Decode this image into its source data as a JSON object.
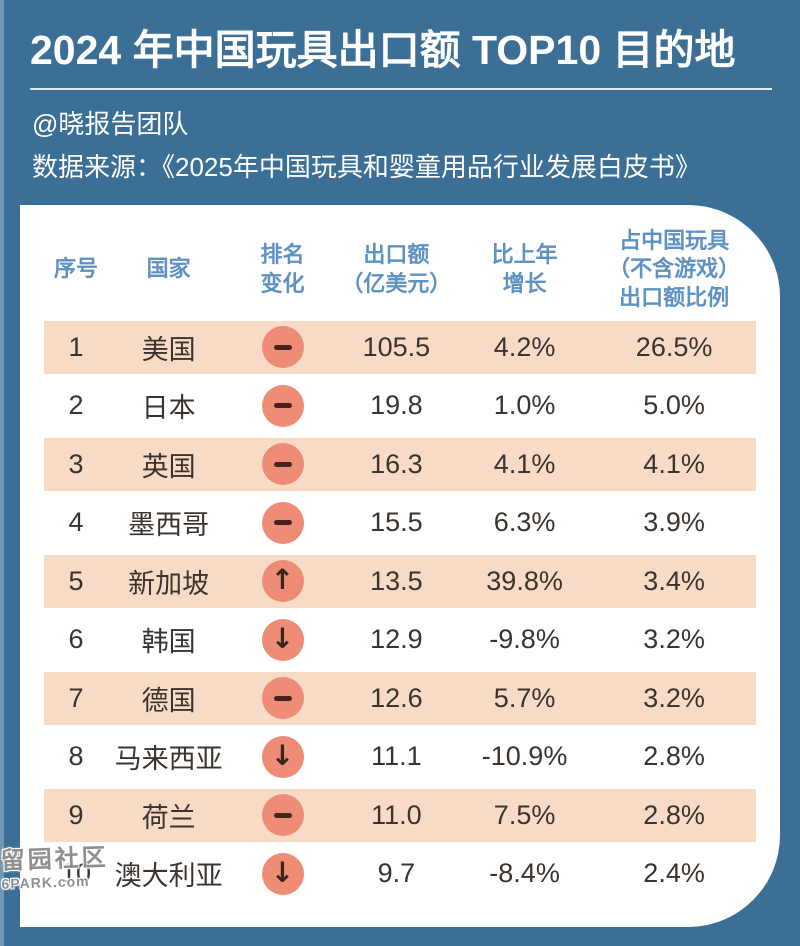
{
  "page": {
    "title": "2024 年中国玩具出口额 TOP10 目的地",
    "byline": "@晓报告团队",
    "source": "数据来源：《2025年中国玩具和婴童用品行业发展白皮书》"
  },
  "table": {
    "headers": [
      "序号",
      "国家",
      "排名\n变化",
      "出口额\n（亿美元）",
      "比上年\n增长",
      "占中国玩具\n（不含游戏）\n出口额比例"
    ],
    "change_glyphs": {
      "same": "",
      "up": "↑",
      "down": "↓"
    },
    "rows": [
      {
        "no": "1",
        "country": "美国",
        "change": "same",
        "export": "105.5",
        "growth": "4.2%",
        "share": "26.5%"
      },
      {
        "no": "2",
        "country": "日本",
        "change": "same",
        "export": "19.8",
        "growth": "1.0%",
        "share": "5.0%"
      },
      {
        "no": "3",
        "country": "英国",
        "change": "same",
        "export": "16.3",
        "growth": "4.1%",
        "share": "4.1%"
      },
      {
        "no": "4",
        "country": "墨西哥",
        "change": "same",
        "export": "15.5",
        "growth": "6.3%",
        "share": "3.9%"
      },
      {
        "no": "5",
        "country": "新加坡",
        "change": "up",
        "export": "13.5",
        "growth": "39.8%",
        "share": "3.4%"
      },
      {
        "no": "6",
        "country": "韩国",
        "change": "down",
        "export": "12.9",
        "growth": "-9.8%",
        "share": "3.2%"
      },
      {
        "no": "7",
        "country": "德国",
        "change": "same",
        "export": "12.6",
        "growth": "5.7%",
        "share": "3.2%"
      },
      {
        "no": "8",
        "country": "马来西亚",
        "change": "down",
        "export": "11.1",
        "growth": "-10.9%",
        "share": "2.8%"
      },
      {
        "no": "9",
        "country": "荷兰",
        "change": "same",
        "export": "11.0",
        "growth": "7.5%",
        "share": "2.8%"
      },
      {
        "no": "10",
        "country": "澳大利亚",
        "change": "down",
        "export": "9.7",
        "growth": "-8.4%",
        "share": "2.4%"
      }
    ]
  },
  "chart_data": {
    "type": "table",
    "title": "2024 年中国玩具出口额 TOP10 目的地",
    "columns": [
      "序号",
      "国家",
      "排名变化",
      "出口额（亿美元）",
      "比上年增长",
      "占中国玩具（不含游戏）出口额比例"
    ],
    "rows": [
      [
        "1",
        "美国",
        "−",
        "105.5",
        "4.2%",
        "26.5%"
      ],
      [
        "2",
        "日本",
        "−",
        "19.8",
        "1.0%",
        "5.0%"
      ],
      [
        "3",
        "英国",
        "−",
        "16.3",
        "4.1%",
        "4.1%"
      ],
      [
        "4",
        "墨西哥",
        "−",
        "15.5",
        "6.3%",
        "3.9%"
      ],
      [
        "5",
        "新加坡",
        "↑",
        "13.5",
        "39.8%",
        "3.4%"
      ],
      [
        "6",
        "韩国",
        "↓",
        "12.9",
        "-9.8%",
        "3.2%"
      ],
      [
        "7",
        "德国",
        "−",
        "12.6",
        "5.7%",
        "3.2%"
      ],
      [
        "8",
        "马来西亚",
        "↓",
        "11.1",
        "-10.9%",
        "2.8%"
      ],
      [
        "9",
        "荷兰",
        "−",
        "11.0",
        "7.5%",
        "2.8%"
      ],
      [
        "10",
        "澳大利亚",
        "↓",
        "9.7",
        "-8.4%",
        "2.4%"
      ]
    ]
  },
  "watermark": {
    "line1": "留园社区",
    "line2": "6PARK.com"
  },
  "colors": {
    "bg": "#3C6F95",
    "card": "#FFFFFF",
    "stripe": "#F8DBC7",
    "badge": "#EE8C76",
    "glyph-dark": "#46241C",
    "header-blue": "#5E92C4",
    "text-dark": "#3B332D",
    "rule": "#E6EEF3",
    "watermark": "#8F8F8F"
  }
}
